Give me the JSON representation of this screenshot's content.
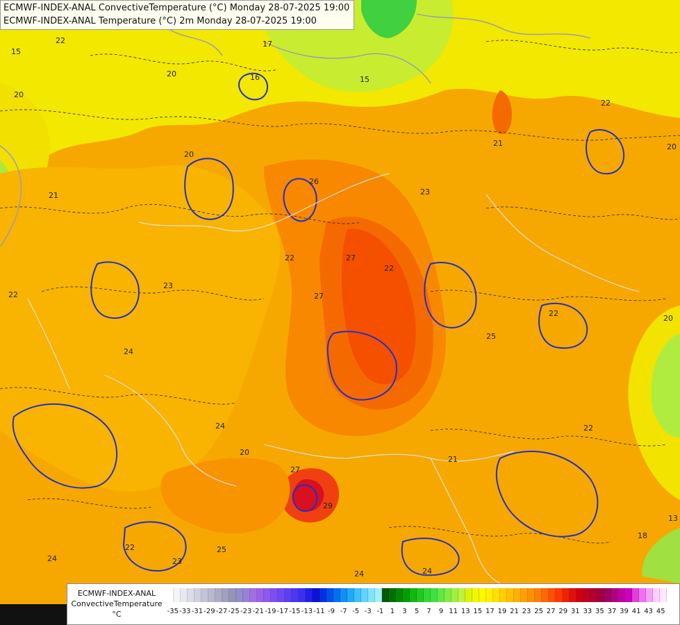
{
  "header": {
    "line1": "ECMWF-INDEX-ANAL ConvectiveTemperature (°C) Monday 28-07-2025 19:00",
    "line2": "ECMWF-INDEX-ANAL Temperature (°C) 2m Monday 28-07-2025 19:00"
  },
  "legend": {
    "line1": "ECMWF-INDEX-ANAL",
    "line2": "ConvectiveTemperature",
    "line3": "°C",
    "tick_labels": [
      "-35",
      "-33",
      "-31",
      "-29",
      "-27",
      "-25",
      "-23",
      "-21",
      "-19",
      "-17",
      "-15",
      "-13",
      "-11",
      "-9",
      "-7",
      "-5",
      "-3",
      "-1",
      "1",
      "3",
      "5",
      "7",
      "9",
      "11",
      "13",
      "15",
      "17",
      "19",
      "21",
      "23",
      "25",
      "27",
      "29",
      "31",
      "33",
      "35",
      "37",
      "39",
      "41",
      "43",
      "45"
    ],
    "colors": [
      "#ffffff",
      "#f4f4f8",
      "#e8e8f0",
      "#dcdce8",
      "#d0d0e0",
      "#c4c4d8",
      "#b8b8d0",
      "#acacc8",
      "#a0a0c0",
      "#9494b8",
      "#9090c8",
      "#9a80d8",
      "#a070e0",
      "#9c60e8",
      "#8c58f0",
      "#7c50f0",
      "#6c48f0",
      "#5c40f0",
      "#4c38f0",
      "#3c30f0",
      "#2020e8",
      "#1010d8",
      "#0030e0",
      "#0050e8",
      "#0070f0",
      "#1090f4",
      "#20a8f8",
      "#40c0fa",
      "#60d4fc",
      "#80e4fe",
      "#a0f0ff",
      "#005a00",
      "#007000",
      "#008800",
      "#00a000",
      "#10b810",
      "#20c820",
      "#30d830",
      "#40e040",
      "#60e840",
      "#80ec40",
      "#a0f040",
      "#c0f040",
      "#dcf400",
      "#f0f800",
      "#fff800",
      "#fff000",
      "#ffe000",
      "#ffd000",
      "#ffc000",
      "#ffb000",
      "#ffa000",
      "#ff9000",
      "#ff8000",
      "#ff6800",
      "#ff5000",
      "#ff3800",
      "#f02000",
      "#e01010",
      "#d00010",
      "#c00020",
      "#b00030",
      "#a00040",
      "#a00060",
      "#b00080",
      "#c000a0",
      "#d000c0",
      "#e040d8",
      "#f070f0",
      "#f8a0f8",
      "#fcd0fc",
      "#ffe8ff"
    ],
    "sample_labels": [
      "22",
      "23",
      "24",
      "25",
      "26",
      "27",
      "20",
      "21",
      "18",
      "16",
      "15",
      "17",
      "13"
    ]
  }
}
